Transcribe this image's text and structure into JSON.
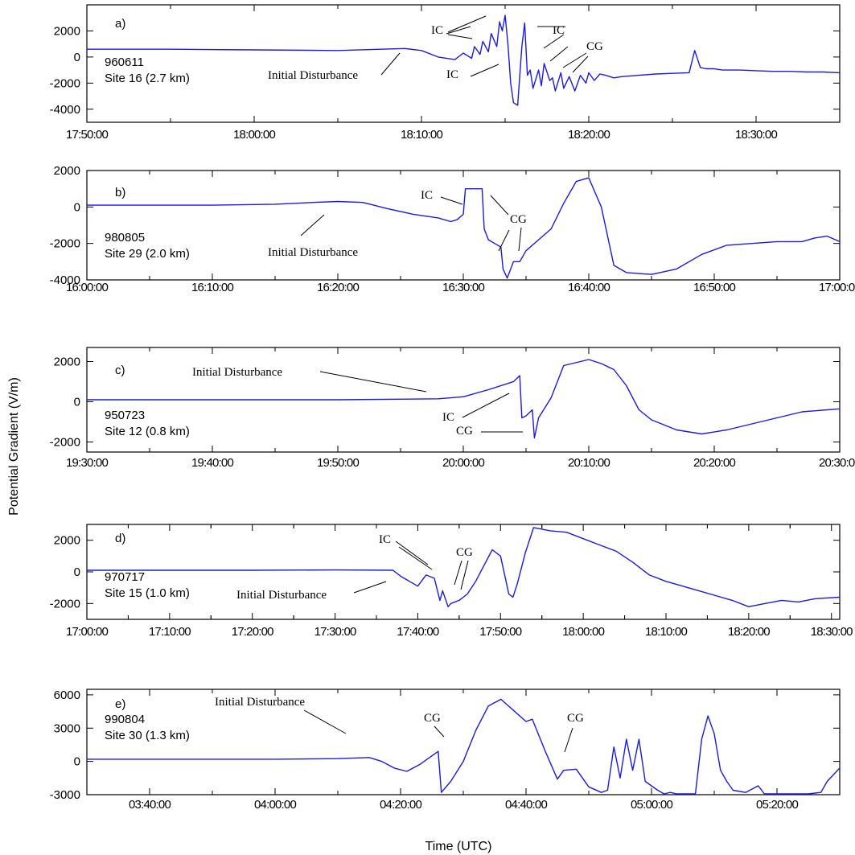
{
  "y_axis_title": "Potential Gradient (V/m)",
  "x_axis_title": "Time (UTC)",
  "colors": {
    "trace": "#1a1ae6",
    "axes": "#000000"
  },
  "chart_data": [
    {
      "type": "line",
      "panel": "a)",
      "event": "960611",
      "site": "Site 16 (2.7 km)",
      "x_ticks": [
        "17:50:00",
        "18:00:00",
        "18:10:00",
        "18:20:00",
        "18:30:00"
      ],
      "y_ticks": [
        "2000",
        "0",
        "-2000",
        "-4000"
      ],
      "xlim": [
        "17:50:00",
        "18:35:00"
      ],
      "ylim": [
        -5000,
        4000
      ],
      "series": [
        {
          "x": [
            "17:50:00",
            "17:55:00",
            "18:00:00",
            "18:05:00",
            "18:09:00",
            "18:10:00",
            "18:11:00",
            "18:12:00",
            "18:12:30",
            "18:13:00",
            "18:13:10",
            "18:13:30",
            "18:13:40",
            "18:14:00",
            "18:14:10",
            "18:14:30",
            "18:14:40",
            "18:14:50",
            "18:15:00",
            "18:15:10",
            "18:15:20",
            "18:15:30",
            "18:15:45",
            "18:16:00",
            "18:16:10",
            "18:16:20",
            "18:16:30",
            "18:16:40",
            "18:17:00",
            "18:17:10",
            "18:17:20",
            "18:17:40",
            "18:17:50",
            "18:18:00",
            "18:18:20",
            "18:18:30",
            "18:18:50",
            "18:19:10",
            "18:19:30",
            "18:19:50",
            "18:20:00",
            "18:20:20",
            "18:20:40",
            "18:21:00",
            "18:21:30",
            "18:22:00",
            "18:23:00",
            "18:24:00",
            "18:25:00",
            "18:26:00",
            "18:26:20",
            "18:26:40",
            "18:27:00",
            "18:27:30",
            "18:28:00",
            "18:29:00",
            "18:30:00",
            "18:31:00",
            "18:32:00",
            "18:33:00",
            "18:34:00",
            "18:35:00"
          ],
          "y": [
            600,
            600,
            550,
            500,
            650,
            500,
            0,
            -200,
            300,
            -100,
            800,
            200,
            1200,
            400,
            1800,
            800,
            2700,
            2000,
            3200,
            1000,
            -2000,
            -3500,
            -3700,
            800,
            2600,
            -1400,
            -1000,
            -2400,
            -1000,
            -2200,
            -500,
            -1800,
            -1600,
            -2600,
            -1200,
            -2400,
            -1500,
            -2600,
            -1400,
            -2000,
            -1200,
            -1800,
            -1300,
            -1400,
            -1600,
            -1500,
            -1400,
            -1300,
            -1250,
            -1200,
            500,
            -800,
            -900,
            -900,
            -1000,
            -1000,
            -1050,
            -1100,
            -1100,
            -1150,
            -1150,
            -1200
          ]
        }
      ],
      "annotations": [
        "IC",
        "IC",
        "IC",
        "CG",
        "Initial Disturbance"
      ]
    },
    {
      "type": "line",
      "panel": "b)",
      "event": "980805",
      "site": "Site 29 (2.0 km)",
      "x_ticks": [
        "16:00:00",
        "16:10:00",
        "16:20:00",
        "16:30:00",
        "16:40:00",
        "16:50:00",
        "17:00:00"
      ],
      "y_ticks": [
        "2000",
        "0",
        "-2000",
        "-4000"
      ],
      "xlim": [
        "16:00:00",
        "17:00:00"
      ],
      "ylim": [
        -4000,
        2000
      ],
      "series": [
        {
          "x": [
            "16:00:00",
            "16:10:00",
            "16:15:00",
            "16:18:00",
            "16:20:00",
            "16:22:00",
            "16:24:00",
            "16:26:00",
            "16:27:00",
            "16:28:00",
            "16:29:00",
            "16:29:30",
            "16:30:00",
            "16:30:10",
            "16:30:20",
            "16:31:00",
            "16:31:30",
            "16:31:40",
            "16:32:00",
            "16:32:30",
            "16:33:00",
            "16:33:10",
            "16:33:30",
            "16:34:00",
            "16:34:30",
            "16:35:00",
            "16:36:00",
            "16:37:00",
            "16:38:00",
            "16:39:00",
            "16:40:00",
            "16:41:00",
            "16:42:00",
            "16:43:00",
            "16:45:00",
            "16:47:00",
            "16:49:00",
            "16:51:00",
            "16:53:00",
            "16:55:00",
            "16:57:00",
            "16:58:00",
            "16:59:00",
            "17:00:00"
          ],
          "y": [
            100,
            100,
            150,
            250,
            300,
            250,
            -100,
            -400,
            -500,
            -600,
            -800,
            -700,
            -400,
            1000,
            1000,
            1000,
            1000,
            -1200,
            -1800,
            -2000,
            -2200,
            -3400,
            -3900,
            -3000,
            -3000,
            -2400,
            -1800,
            -1200,
            200,
            1400,
            1600,
            0,
            -3200,
            -3600,
            -3700,
            -3400,
            -2600,
            -2100,
            -2000,
            -1900,
            -1900,
            -1700,
            -1600,
            -1900
          ]
        }
      ],
      "annotations": [
        "IC",
        "CG",
        "Initial Disturbance"
      ]
    },
    {
      "type": "line",
      "panel": "c)",
      "event": "950723",
      "site": "Site 12 (0.8 km)",
      "x_ticks": [
        "19:30:00",
        "19:40:00",
        "19:50:00",
        "20:00:00",
        "20:10:00",
        "20:20:00",
        "20:30:00"
      ],
      "y_ticks": [
        "2000",
        "0",
        "-2000"
      ],
      "xlim": [
        "19:30:00",
        "20:30:00"
      ],
      "ylim": [
        -2500,
        2700
      ],
      "series": [
        {
          "x": [
            "19:30:00",
            "19:40:00",
            "19:50:00",
            "19:58:00",
            "20:00:00",
            "20:02:00",
            "20:04:00",
            "20:04:30",
            "20:04:40",
            "20:05:00",
            "20:05:30",
            "20:05:40",
            "20:06:00",
            "20:07:00",
            "20:08:00",
            "20:10:00",
            "20:11:00",
            "20:12:00",
            "20:13:00",
            "20:14:00",
            "20:15:00",
            "20:17:00",
            "20:19:00",
            "20:21:00",
            "20:23:00",
            "20:25:00",
            "20:27:00",
            "20:30:00"
          ],
          "y": [
            100,
            100,
            100,
            150,
            250,
            600,
            1000,
            1300,
            -800,
            -700,
            -400,
            -1800,
            -800,
            200,
            1800,
            2100,
            1900,
            1600,
            800,
            -400,
            -900,
            -1400,
            -1600,
            -1400,
            -1100,
            -800,
            -500,
            -350
          ]
        }
      ],
      "annotations": [
        "Initial Disturbance",
        "IC",
        "CG"
      ]
    },
    {
      "type": "line",
      "panel": "d)",
      "event": "970717",
      "site": "Site 15 (1.0 km)",
      "x_ticks": [
        "17:00:00",
        "17:10:00",
        "17:20:00",
        "17:30:00",
        "17:40:00",
        "17:50:00",
        "18:00:00",
        "18:10:00",
        "18:20:00",
        "18:30:00"
      ],
      "y_ticks": [
        "2000",
        "0",
        "-2000"
      ],
      "xlim": [
        "17:00:00",
        "18:31:00"
      ],
      "ylim": [
        -3000,
        3000
      ],
      "series": [
        {
          "x": [
            "17:00:00",
            "17:10:00",
            "17:20:00",
            "17:30:00",
            "17:37:00",
            "17:38:00",
            "17:39:00",
            "17:40:00",
            "17:41:00",
            "17:42:00",
            "17:42:40",
            "17:43:00",
            "17:43:40",
            "17:44:00",
            "17:45:00",
            "17:46:00",
            "17:47:00",
            "17:48:00",
            "17:49:00",
            "17:50:00",
            "17:51:00",
            "17:51:30",
            "17:52:00",
            "17:53:00",
            "17:54:00",
            "17:56:00",
            "17:58:00",
            "18:00:00",
            "18:02:00",
            "18:04:00",
            "18:06:00",
            "18:08:00",
            "18:10:00",
            "18:12:00",
            "18:14:00",
            "18:16:00",
            "18:18:00",
            "18:20:00",
            "18:22:00",
            "18:24:00",
            "18:26:00",
            "18:28:00",
            "18:31:00"
          ],
          "y": [
            100,
            100,
            100,
            120,
            100,
            -300,
            -600,
            -900,
            -200,
            -400,
            -1800,
            -1200,
            -2200,
            -2000,
            -1800,
            -1400,
            -600,
            400,
            1400,
            1000,
            -1400,
            -1600,
            -800,
            1200,
            2800,
            2600,
            2500,
            2100,
            1700,
            1300,
            600,
            -200,
            -600,
            -900,
            -1200,
            -1500,
            -1800,
            -2200,
            -2000,
            -1800,
            -1900,
            -1700,
            -1600
          ]
        }
      ],
      "annotations": [
        "IC",
        "CG",
        "Initial Disturbance"
      ]
    },
    {
      "type": "line",
      "panel": "e)",
      "event": "990804",
      "site": "Site 30 (1.3 km)",
      "x_ticks": [
        "03:40:00",
        "04:00:00",
        "04:20:00",
        "04:40:00",
        "05:00:00",
        "05:20:00"
      ],
      "y_ticks": [
        "6000",
        "3000",
        "0",
        "-3000"
      ],
      "xlim": [
        "03:30:00",
        "05:30:00"
      ],
      "ylim": [
        -3000,
        6500
      ],
      "series": [
        {
          "x": [
            "03:30:00",
            "03:45:00",
            "04:00:00",
            "04:10:00",
            "04:15:00",
            "04:17:00",
            "04:19:00",
            "04:21:00",
            "04:23:00",
            "04:25:00",
            "04:26:00",
            "04:26:30",
            "04:28:00",
            "04:30:00",
            "04:32:00",
            "04:34:00",
            "04:36:00",
            "04:38:00",
            "04:40:00",
            "04:41:00",
            "04:43:00",
            "04:45:00",
            "04:46:00",
            "04:48:00",
            "04:50:00",
            "04:52:00",
            "04:53:00",
            "04:54:00",
            "04:55:00",
            "04:56:00",
            "04:57:00",
            "04:58:00",
            "04:59:00",
            "05:00:00",
            "05:01:00",
            "05:02:00",
            "05:03:00",
            "05:04:00",
            "05:05:00",
            "05:06:00",
            "05:07:00",
            "05:08:00",
            "05:09:00",
            "05:10:00",
            "05:11:00",
            "05:12:00",
            "05:13:00",
            "05:15:00",
            "05:17:00",
            "05:18:00",
            "05:19:00",
            "05:20:00",
            "05:25:00",
            "05:27:00",
            "05:28:00",
            "05:30:00"
          ],
          "y": [
            200,
            200,
            200,
            250,
            350,
            0,
            -600,
            -900,
            -300,
            500,
            900,
            -2800,
            -1800,
            0,
            2800,
            5000,
            5600,
            4600,
            3600,
            3800,
            1000,
            -1600,
            -800,
            -700,
            -2300,
            -2800,
            -2600,
            1300,
            -1500,
            2000,
            -800,
            2000,
            -1800,
            -2200,
            -2600,
            -3000,
            -2800,
            -3000,
            -3000,
            -3000,
            -3000,
            2000,
            4100,
            2500,
            -800,
            -1800,
            -2600,
            -2800,
            -2200,
            -3000,
            -3000,
            -3000,
            -3000,
            -2800,
            -1800,
            -600
          ]
        }
      ],
      "annotations": [
        "Initial Disturbance",
        "CG",
        "CG"
      ]
    }
  ]
}
